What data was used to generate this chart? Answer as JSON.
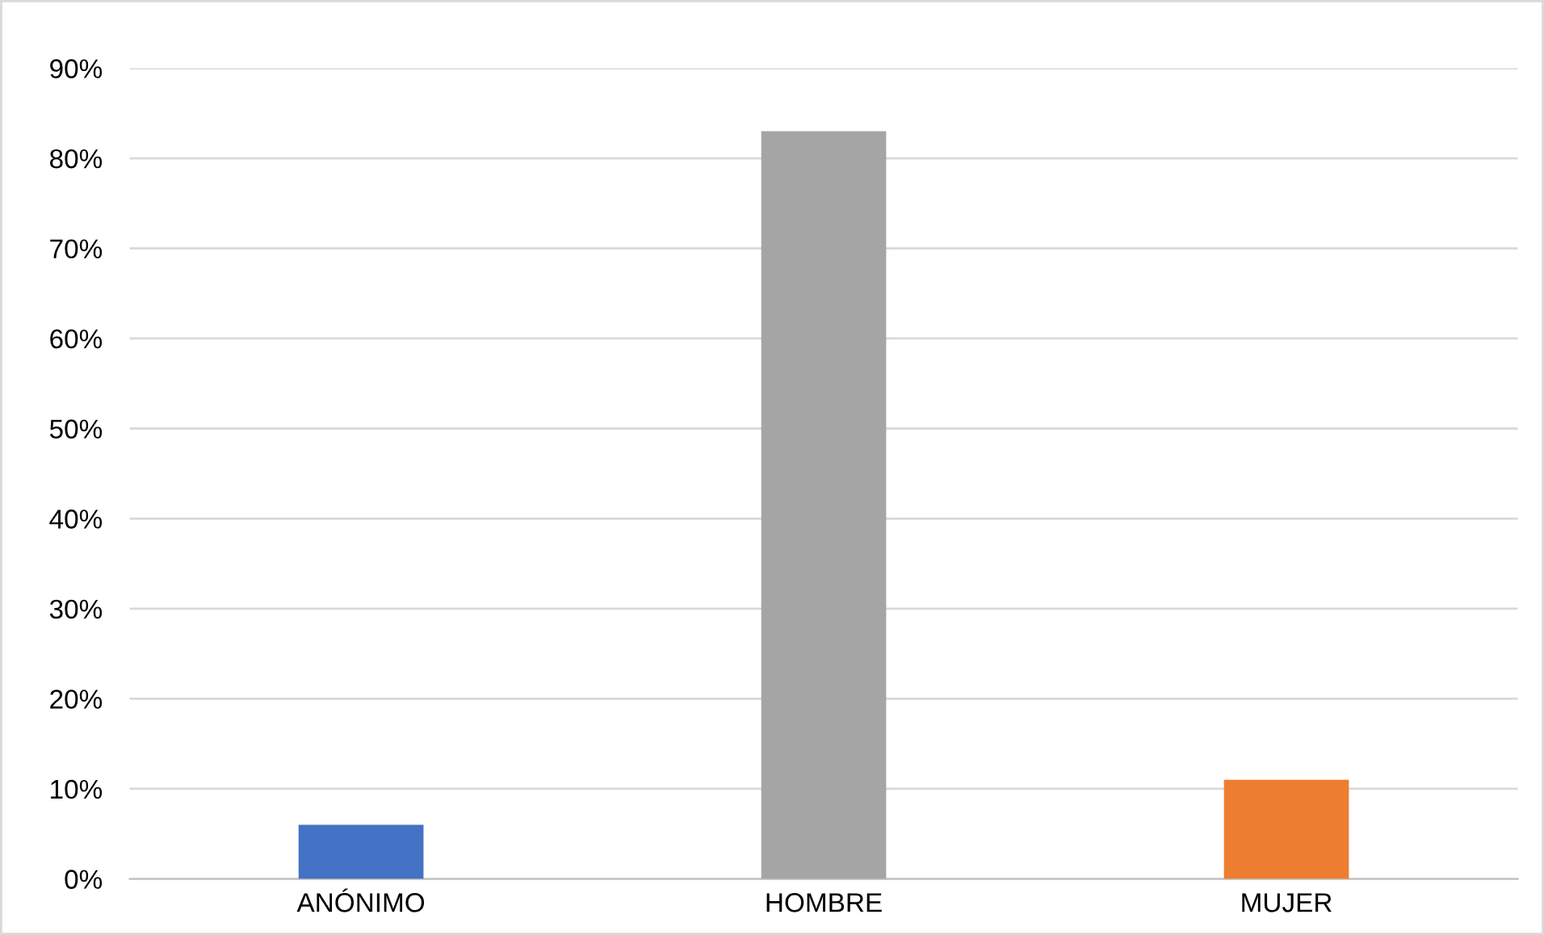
{
  "chart_data": {
    "type": "bar",
    "categories": [
      "ANÓNIMO",
      "HOMBRE",
      "MUJER"
    ],
    "values": [
      6,
      83,
      11
    ],
    "colors": [
      "#4472c4",
      "#a5a5a5",
      "#ed7d31"
    ],
    "ylim": [
      0,
      90
    ],
    "yticks": [
      {
        "value": 0,
        "label": "0%"
      },
      {
        "value": 10,
        "label": "10%"
      },
      {
        "value": 20,
        "label": "20%"
      },
      {
        "value": 30,
        "label": "30%"
      },
      {
        "value": 40,
        "label": "40%"
      },
      {
        "value": 50,
        "label": "50%"
      },
      {
        "value": 60,
        "label": "60%"
      },
      {
        "value": 70,
        "label": "70%"
      },
      {
        "value": 80,
        "label": "80%"
      },
      {
        "value": 90,
        "label": "90%"
      }
    ],
    "grid": "y",
    "legend": false
  }
}
